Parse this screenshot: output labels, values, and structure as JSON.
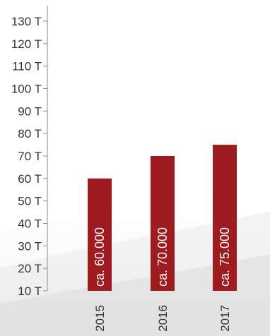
{
  "chart_data": {
    "type": "bar",
    "categories": [
      "2015",
      "2016",
      "2017"
    ],
    "values": [
      60000,
      70000,
      75000
    ],
    "data_labels": [
      "ca. 60.000",
      "ca. 70.000",
      "ca. 75.000"
    ],
    "title": "",
    "xlabel": "",
    "ylabel": "",
    "ylim": [
      10000,
      130000
    ],
    "yticks": [
      10000,
      20000,
      30000,
      40000,
      50000,
      60000,
      70000,
      80000,
      90000,
      100000,
      110000,
      120000,
      130000
    ],
    "ytick_labels": [
      "10 T",
      "20 T",
      "30 T",
      "40 T",
      "50 T",
      "60 T",
      "70 T",
      "80 T",
      "90 T",
      "100 T",
      "110 T",
      "120 T",
      "130 T"
    ],
    "grid": false,
    "colors": {
      "bar": "#9e1b20",
      "axis": "#8a8a8a",
      "text": "#333333"
    }
  }
}
